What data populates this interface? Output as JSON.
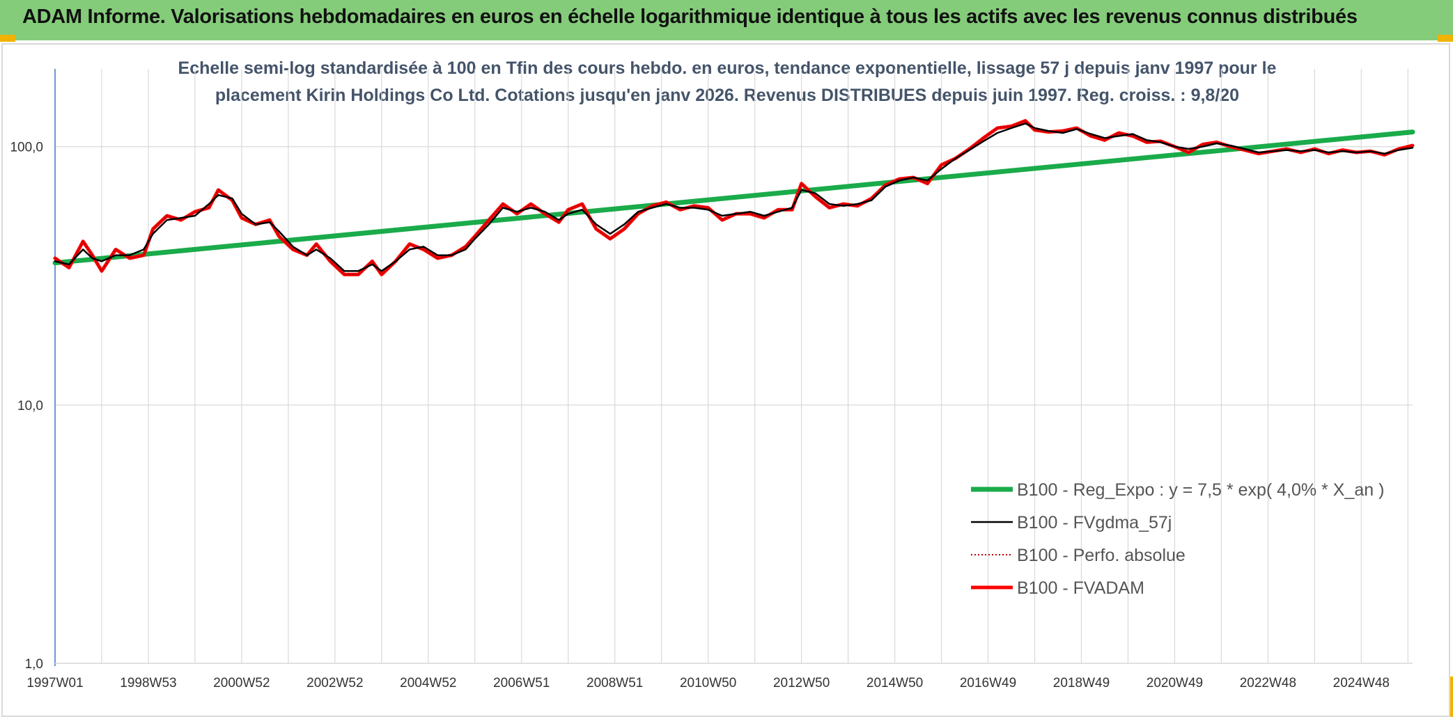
{
  "header": {
    "title": "ADAM Informe. Valorisations hebdomadaires en euros en échelle logarithmique identique à tous les actifs avec les revenus connus distribués"
  },
  "colors": {
    "header_bg": "#84cc7a",
    "reg_expo": "#1aab4a",
    "fvgdma": "#000000",
    "perfo": "#c00000",
    "fvadam": "#ff0000",
    "grid": "#d9d9d9",
    "axis": "#4472c4"
  },
  "chart_data": {
    "type": "line",
    "title_lines": [
      "Echelle semi-log standardisée à 100 en Tfin des cours hebdo. en euros, tendance exponentielle, lissage 57 j depuis janv 1997 pour le",
      "placement Kirin Holdings Co Ltd. Cotations jusqu'en janv 2026. Revenus DISTRIBUES depuis juin 1997. Reg. croiss. : 9,8/20"
    ],
    "y_scale": "log",
    "ylim": [
      1,
      200
    ],
    "xlim": [
      1997.0,
      2026.1
    ],
    "y_ticks": [
      {
        "value": 100,
        "label": "100,0"
      },
      {
        "value": 10,
        "label": "10,0"
      },
      {
        "value": 1,
        "label": "1,0"
      }
    ],
    "x_ticks": [
      {
        "value": 1997.0,
        "label": "1997W01"
      },
      {
        "value": 1999.0,
        "label": "1998W53"
      },
      {
        "value": 2001.0,
        "label": "2000W52"
      },
      {
        "value": 2003.0,
        "label": "2002W52"
      },
      {
        "value": 2005.0,
        "label": "2004W52"
      },
      {
        "value": 2007.0,
        "label": "2006W51"
      },
      {
        "value": 2009.0,
        "label": "2008W51"
      },
      {
        "value": 2011.0,
        "label": "2010W50"
      },
      {
        "value": 2013.0,
        "label": "2012W50"
      },
      {
        "value": 2015.0,
        "label": "2014W50"
      },
      {
        "value": 2017.0,
        "label": "2016W49"
      },
      {
        "value": 2019.0,
        "label": "2018W49"
      },
      {
        "value": 2021.0,
        "label": "2020W49"
      },
      {
        "value": 2023.0,
        "label": "2022W48"
      },
      {
        "value": 2025.0,
        "label": "2024W48"
      }
    ],
    "series": [
      {
        "name": "B100 - Reg_Expo : y = 7,5 * exp( 4,0% *  X_an )",
        "style": "thick-green",
        "x": [
          1997.0,
          2026.1
        ],
        "values": [
          35.5,
          114
        ]
      },
      {
        "name": "B100 - FVgdma_57j",
        "style": "thin-black",
        "x": [
          1997.0,
          1997.3,
          1997.6,
          1997.8,
          1998.0,
          1998.3,
          1998.6,
          1998.9,
          1999.1,
          1999.4,
          1999.7,
          2000.0,
          2000.3,
          2000.5,
          2000.8,
          2001.0,
          2001.3,
          2001.6,
          2001.8,
          2002.1,
          2002.4,
          2002.6,
          2002.9,
          2003.2,
          2003.5,
          2003.8,
          2004.0,
          2004.3,
          2004.6,
          2004.9,
          2005.2,
          2005.5,
          2005.8,
          2006.0,
          2006.3,
          2006.6,
          2006.9,
          2007.2,
          2007.5,
          2007.8,
          2008.0,
          2008.3,
          2008.6,
          2008.9,
          2009.2,
          2009.5,
          2009.8,
          2010.1,
          2010.4,
          2010.7,
          2011.0,
          2011.3,
          2011.6,
          2011.9,
          2012.2,
          2012.5,
          2012.8,
          2013.0,
          2013.3,
          2013.6,
          2013.9,
          2014.2,
          2014.5,
          2014.8,
          2015.1,
          2015.4,
          2015.7,
          2016.0,
          2016.3,
          2016.6,
          2016.9,
          2017.2,
          2017.5,
          2017.8,
          2018.0,
          2018.3,
          2018.6,
          2018.9,
          2019.2,
          2019.5,
          2019.8,
          2020.1,
          2020.4,
          2020.7,
          2021.0,
          2021.3,
          2021.6,
          2021.9,
          2022.2,
          2022.5,
          2022.8,
          2023.1,
          2023.4,
          2023.7,
          2024.0,
          2024.3,
          2024.6,
          2024.9,
          2025.2,
          2025.5,
          2025.8,
          2026.1
        ],
        "values": [
          36,
          35,
          40,
          37,
          36,
          38,
          38,
          40,
          46,
          52,
          53,
          54,
          60,
          65,
          63,
          55,
          50,
          51,
          47,
          41,
          38,
          40,
          37,
          33,
          33,
          35,
          33,
          36,
          40,
          41,
          38,
          38,
          40,
          44,
          50,
          58,
          56,
          58,
          56,
          52,
          55,
          57,
          50,
          46,
          50,
          56,
          58,
          60,
          58,
          58,
          57,
          54,
          55,
          56,
          54,
          56,
          58,
          68,
          66,
          60,
          59,
          60,
          62,
          70,
          74,
          76,
          74,
          82,
          90,
          97,
          105,
          113,
          118,
          123,
          118,
          115,
          113,
          117,
          112,
          108,
          110,
          112,
          106,
          104,
          100,
          98,
          100,
          103,
          101,
          98,
          95,
          96,
          97,
          96,
          97,
          95,
          96,
          95,
          96,
          94,
          97,
          99
        ]
      },
      {
        "name": "B100 - Perfo. absolue",
        "style": "dotted-darkred",
        "x": [
          1997.0,
          1997.3,
          1997.6,
          1997.8,
          1998.0,
          1998.3,
          1998.6,
          1998.9,
          1999.1,
          1999.4,
          1999.7,
          2000.0,
          2000.3,
          2000.5,
          2000.8,
          2001.0,
          2001.3,
          2001.6,
          2001.8,
          2002.1,
          2002.4,
          2002.6,
          2002.9,
          2003.2,
          2003.5,
          2003.8,
          2004.0,
          2004.3,
          2004.6,
          2004.9,
          2005.2,
          2005.5,
          2005.8,
          2006.0,
          2006.3,
          2006.6,
          2006.9,
          2007.2,
          2007.5,
          2007.8,
          2008.0,
          2008.3,
          2008.6,
          2008.9,
          2009.2,
          2009.5,
          2009.8,
          2010.1,
          2010.4,
          2010.7,
          2011.0,
          2011.3,
          2011.6,
          2011.9,
          2012.2,
          2012.5,
          2012.8,
          2013.0,
          2013.3,
          2013.6,
          2013.9,
          2014.2,
          2014.5,
          2014.8,
          2015.1,
          2015.4,
          2015.7,
          2016.0,
          2016.3,
          2016.6,
          2016.9,
          2017.2,
          2017.5,
          2017.8,
          2018.0,
          2018.3,
          2018.6,
          2018.9,
          2019.2,
          2019.5,
          2019.8,
          2020.1,
          2020.4,
          2020.7,
          2021.0,
          2021.3,
          2021.6,
          2021.9,
          2022.2,
          2022.5,
          2022.8,
          2023.1,
          2023.4,
          2023.7,
          2024.0,
          2024.3,
          2024.6,
          2024.9,
          2025.2,
          2025.5,
          2025.8,
          2026.1
        ],
        "values": [
          37,
          34,
          43,
          38,
          33,
          40,
          37,
          38,
          48,
          54,
          52,
          56,
          58,
          68,
          62,
          53,
          50,
          52,
          45,
          40,
          38,
          42,
          36,
          32,
          32,
          36,
          32,
          36,
          42,
          40,
          37,
          38,
          41,
          45,
          52,
          60,
          55,
          60,
          55,
          51,
          57,
          60,
          48,
          44,
          48,
          55,
          59,
          61,
          57,
          59,
          58,
          52,
          55,
          55,
          53,
          57,
          57,
          72,
          64,
          58,
          60,
          59,
          63,
          71,
          75,
          76,
          72,
          85,
          90,
          98,
          108,
          118,
          120,
          126,
          116,
          114,
          115,
          118,
          110,
          106,
          113,
          110,
          104,
          105,
          100,
          95,
          102,
          104,
          100,
          97,
          94,
          96,
          98,
          95,
          98,
          94,
          97,
          95,
          96,
          93,
          98,
          101
        ]
      },
      {
        "name": "B100 - FVADAM",
        "style": "thick-red",
        "x": [
          1997.0,
          1997.3,
          1997.6,
          1997.8,
          1998.0,
          1998.3,
          1998.6,
          1998.9,
          1999.1,
          1999.4,
          1999.7,
          2000.0,
          2000.3,
          2000.5,
          2000.8,
          2001.0,
          2001.3,
          2001.6,
          2001.8,
          2002.1,
          2002.4,
          2002.6,
          2002.9,
          2003.2,
          2003.5,
          2003.8,
          2004.0,
          2004.3,
          2004.6,
          2004.9,
          2005.2,
          2005.5,
          2005.8,
          2006.0,
          2006.3,
          2006.6,
          2006.9,
          2007.2,
          2007.5,
          2007.8,
          2008.0,
          2008.3,
          2008.6,
          2008.9,
          2009.2,
          2009.5,
          2009.8,
          2010.1,
          2010.4,
          2010.7,
          2011.0,
          2011.3,
          2011.6,
          2011.9,
          2012.2,
          2012.5,
          2012.8,
          2013.0,
          2013.3,
          2013.6,
          2013.9,
          2014.2,
          2014.5,
          2014.8,
          2015.1,
          2015.4,
          2015.7,
          2016.0,
          2016.3,
          2016.6,
          2016.9,
          2017.2,
          2017.5,
          2017.8,
          2018.0,
          2018.3,
          2018.6,
          2018.9,
          2019.2,
          2019.5,
          2019.8,
          2020.1,
          2020.4,
          2020.7,
          2021.0,
          2021.3,
          2021.6,
          2021.9,
          2022.2,
          2022.5,
          2022.8,
          2023.1,
          2023.4,
          2023.7,
          2024.0,
          2024.3,
          2024.6,
          2024.9,
          2025.2,
          2025.5,
          2025.8,
          2026.1
        ],
        "values": [
          37,
          34,
          43,
          38,
          33,
          40,
          37,
          38,
          48,
          54,
          52,
          56,
          58,
          68,
          62,
          53,
          50,
          52,
          45,
          40,
          38,
          42,
          36,
          32,
          32,
          36,
          32,
          36,
          42,
          40,
          37,
          38,
          41,
          45,
          52,
          60,
          55,
          60,
          55,
          51,
          57,
          60,
          48,
          44,
          48,
          55,
          59,
          61,
          57,
          59,
          58,
          52,
          55,
          55,
          53,
          57,
          57,
          72,
          64,
          58,
          60,
          59,
          63,
          71,
          75,
          76,
          72,
          85,
          90,
          98,
          108,
          118,
          120,
          126,
          116,
          114,
          115,
          118,
          110,
          106,
          113,
          110,
          104,
          105,
          100,
          95,
          102,
          104,
          100,
          97,
          94,
          96,
          98,
          95,
          98,
          94,
          97,
          95,
          96,
          93,
          98,
          101
        ]
      }
    ]
  }
}
